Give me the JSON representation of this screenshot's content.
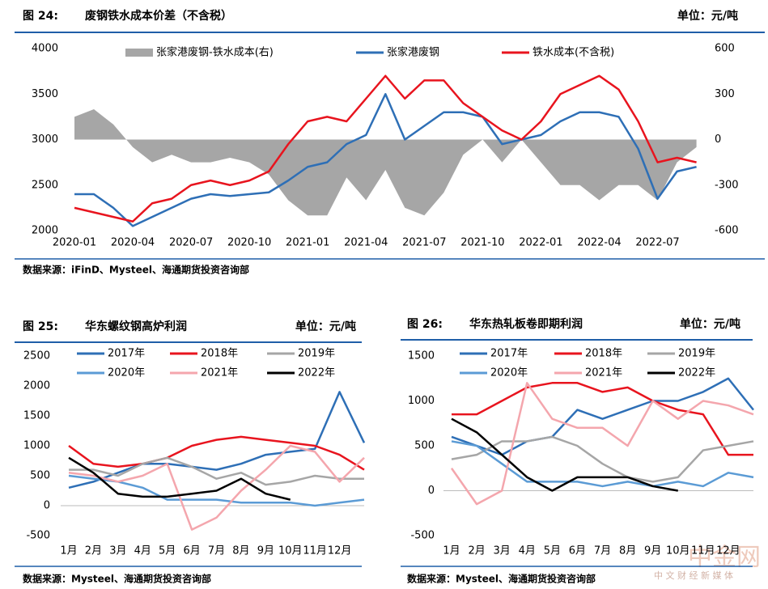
{
  "chart_data": [
    {
      "type": "line",
      "figure_label": "图 24:",
      "title": "废钢铁水成本价差（不含税）",
      "unit": "单位：元/吨",
      "source": "数据来源：iFinD、Mysteel、海通期货投资咨询部",
      "x": [
        0,
        1,
        2,
        3,
        4,
        5,
        6,
        7,
        8,
        9,
        10,
        11,
        12,
        13,
        14,
        15,
        16,
        17,
        18,
        19,
        20,
        21,
        22,
        23,
        24,
        25,
        26,
        27,
        28,
        29,
        30,
        31,
        32
      ],
      "xlim": [
        0,
        32.6
      ],
      "xticks": [
        {
          "value": 0,
          "label": "2020-01"
        },
        {
          "value": 3,
          "label": "2020-04"
        },
        {
          "value": 6,
          "label": "2020-07"
        },
        {
          "value": 9,
          "label": "2020-10"
        },
        {
          "value": 12,
          "label": "2021-01"
        },
        {
          "value": 15,
          "label": "2021-04"
        },
        {
          "value": 18,
          "label": "2021-07"
        },
        {
          "value": 21,
          "label": "2021-10"
        },
        {
          "value": 24,
          "label": "2022-01"
        },
        {
          "value": 27,
          "label": "2022-04"
        },
        {
          "value": 30,
          "label": "2022-07"
        }
      ],
      "ylim": [
        2000,
        4000
      ],
      "yticks": [
        2000,
        2500,
        3000,
        3500,
        4000
      ],
      "y2lim": [
        -600,
        600
      ],
      "y2ticks": [
        -600,
        -300,
        0,
        300,
        600
      ],
      "series": [
        {
          "name": "张家港废钢-铁水成本(右)",
          "color": "#a6a6a6",
          "axis": "y2",
          "style": "area",
          "values": [
            150,
            200,
            100,
            -50,
            -150,
            -100,
            -150,
            -150,
            -120,
            -150,
            -230,
            -400,
            -500,
            -500,
            -250,
            -400,
            -200,
            -450,
            -500,
            -350,
            -100,
            0,
            -150,
            0,
            -150,
            -300,
            -300,
            -400,
            -300,
            -300,
            -400,
            -150,
            -50
          ]
        },
        {
          "name": "张家港废钢",
          "color": "#2e6fb6",
          "style": "line",
          "values": [
            2400,
            2400,
            2250,
            2050,
            2150,
            2250,
            2350,
            2400,
            2380,
            2400,
            2420,
            2550,
            2700,
            2750,
            2950,
            3050,
            3500,
            3000,
            3150,
            3300,
            3300,
            3250,
            2950,
            3000,
            3050,
            3200,
            3300,
            3300,
            3250,
            2900,
            2350,
            2650,
            2700
          ]
        },
        {
          "name": "铁水成本(不含税)",
          "color": "#e8141e",
          "style": "line",
          "values": [
            2250,
            2200,
            2150,
            2100,
            2300,
            2350,
            2500,
            2550,
            2500,
            2550,
            2650,
            2950,
            3200,
            3250,
            3200,
            3450,
            3700,
            3450,
            3650,
            3650,
            3400,
            3250,
            3100,
            3000,
            3200,
            3500,
            3600,
            3700,
            3550,
            3200,
            2750,
            2800,
            2750
          ]
        }
      ]
    },
    {
      "type": "line",
      "figure_label": "图 25:",
      "title": "华东螺纹钢高炉利润",
      "unit": "单位：元/吨",
      "source": "数据来源：Mysteel、海通期货投资咨询部",
      "x": [
        1,
        2,
        3,
        4,
        5,
        6,
        7,
        8,
        9,
        10,
        11,
        12,
        13
      ],
      "xlim": [
        1,
        13
      ],
      "xticks": [
        {
          "value": 1,
          "label": "1月"
        },
        {
          "value": 2,
          "label": "2月"
        },
        {
          "value": 3,
          "label": "3月"
        },
        {
          "value": 4,
          "label": "4月"
        },
        {
          "value": 5,
          "label": "5月"
        },
        {
          "value": 6,
          "label": "6月"
        },
        {
          "value": 7,
          "label": "7月"
        },
        {
          "value": 8,
          "label": "8月"
        },
        {
          "value": 9,
          "label": "9月"
        },
        {
          "value": 10,
          "label": "10月"
        },
        {
          "value": 11,
          "label": "11月"
        },
        {
          "value": 12,
          "label": "12月"
        }
      ],
      "ylim": [
        -500,
        2500
      ],
      "yticks": [
        -500,
        0,
        500,
        1000,
        1500,
        2000,
        2500
      ],
      "series": [
        {
          "name": "2017年",
          "color": "#2e6fb6",
          "values": [
            300,
            400,
            550,
            700,
            700,
            650,
            600,
            700,
            850,
            900,
            950,
            1900,
            1050
          ]
        },
        {
          "name": "2018年",
          "color": "#e8141e",
          "values": [
            1000,
            700,
            650,
            700,
            800,
            1000,
            1100,
            1150,
            1100,
            1050,
            1000,
            850,
            600
          ]
        },
        {
          "name": "2019年",
          "color": "#a6a6a6",
          "values": [
            600,
            600,
            500,
            700,
            800,
            650,
            450,
            550,
            350,
            400,
            500,
            450,
            450
          ]
        },
        {
          "name": "2020年",
          "color": "#5b9bd5",
          "values": [
            500,
            450,
            400,
            300,
            100,
            100,
            100,
            50,
            50,
            50,
            0,
            50,
            100
          ]
        },
        {
          "name": "2021年",
          "color": "#f4a6ad",
          "values": [
            550,
            500,
            400,
            500,
            700,
            -400,
            -200,
            250,
            600,
            1000,
            900,
            400,
            800
          ]
        },
        {
          "name": "2022年",
          "color": "#000000",
          "values": [
            800,
            550,
            200,
            150,
            150,
            200,
            250,
            450,
            200,
            100,
            null,
            null,
            null
          ]
        }
      ]
    },
    {
      "type": "line",
      "figure_label": "图 26:",
      "title": "华东热轧板卷即期利润",
      "unit": "单位：元/吨",
      "source": "数据来源：Mysteel、海通期货投资咨询部",
      "x": [
        1,
        2,
        3,
        4,
        5,
        6,
        7,
        8,
        9,
        10,
        11,
        12,
        13
      ],
      "xlim": [
        1,
        13
      ],
      "xticks": [
        {
          "value": 1,
          "label": "1月"
        },
        {
          "value": 2,
          "label": "2月"
        },
        {
          "value": 3,
          "label": "3月"
        },
        {
          "value": 4,
          "label": "4月"
        },
        {
          "value": 5,
          "label": "5月"
        },
        {
          "value": 6,
          "label": "6月"
        },
        {
          "value": 7,
          "label": "7月"
        },
        {
          "value": 8,
          "label": "8月"
        },
        {
          "value": 9,
          "label": "9月"
        },
        {
          "value": 10,
          "label": "10月"
        },
        {
          "value": 11,
          "label": "11月"
        },
        {
          "value": 12,
          "label": "12月"
        }
      ],
      "ylim": [
        -500,
        1500
      ],
      "yticks": [
        -500,
        0,
        500,
        1000,
        1500
      ],
      "series": [
        {
          "name": "2017年",
          "color": "#2e6fb6",
          "values": [
            600,
            500,
            400,
            550,
            600,
            900,
            800,
            900,
            1000,
            1000,
            1100,
            1250,
            900
          ]
        },
        {
          "name": "2018年",
          "color": "#e8141e",
          "values": [
            850,
            850,
            1000,
            1150,
            1200,
            1200,
            1100,
            1150,
            1000,
            900,
            850,
            400,
            400
          ]
        },
        {
          "name": "2019年",
          "color": "#a6a6a6",
          "values": [
            350,
            400,
            550,
            550,
            600,
            500,
            300,
            150,
            100,
            150,
            450,
            500,
            550
          ]
        },
        {
          "name": "2020年",
          "color": "#5b9bd5",
          "values": [
            550,
            500,
            300,
            100,
            100,
            100,
            50,
            100,
            50,
            100,
            50,
            200,
            150
          ]
        },
        {
          "name": "2021年",
          "color": "#f4a6ad",
          "values": [
            250,
            -150,
            0,
            1200,
            800,
            700,
            700,
            500,
            1000,
            800,
            1000,
            950,
            850
          ]
        },
        {
          "name": "2022年",
          "color": "#000000",
          "values": [
            800,
            650,
            400,
            150,
            0,
            150,
            150,
            150,
            50,
            0,
            null,
            null,
            null
          ]
        }
      ]
    }
  ],
  "watermark": {
    "name": "中金网",
    "tagline": "中 文 财 经 新 媒 体"
  }
}
